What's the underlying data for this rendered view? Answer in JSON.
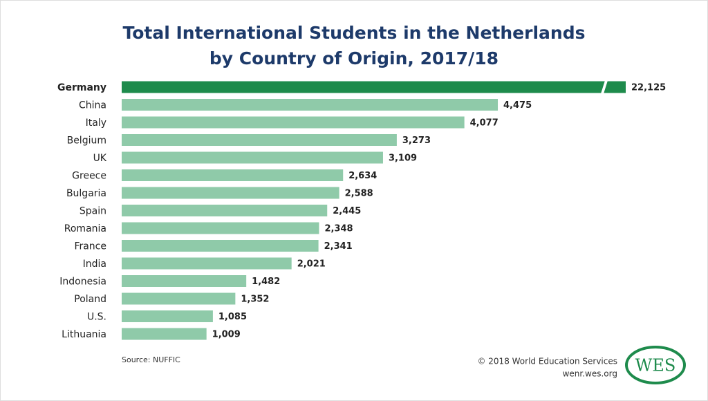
{
  "chart_data": {
    "type": "bar",
    "orientation": "horizontal",
    "title_lines": [
      "Total International Students in the Netherlands",
      "by Country of Origin, 2017/18"
    ],
    "categories": [
      "Germany",
      "China",
      "Italy",
      "Belgium",
      "UK",
      "Greece",
      "Bulgaria",
      "Spain",
      "Romania",
      "France",
      "India",
      "Indonesia",
      "Poland",
      "U.S.",
      "Lithuania"
    ],
    "values": [
      22125,
      4475,
      4077,
      3273,
      3109,
      2634,
      2588,
      2445,
      2348,
      2341,
      2021,
      1482,
      1352,
      1085,
      1009
    ],
    "value_labels": [
      "22,125",
      "4,475",
      "4,077",
      "3,273",
      "3,109",
      "2,634",
      "2,588",
      "2,445",
      "2,348",
      "2,341",
      "2,021",
      "1,482",
      "1,352",
      "1,085",
      "1,009"
    ],
    "color": "#8fcaa9",
    "highlight_index": 0,
    "highlight_color": "#1e8b4c",
    "source": "Source: NUFFIC",
    "copyright": "© 2018 World Education Services",
    "website": "wenr.wes.org",
    "logo_text": "WES"
  }
}
